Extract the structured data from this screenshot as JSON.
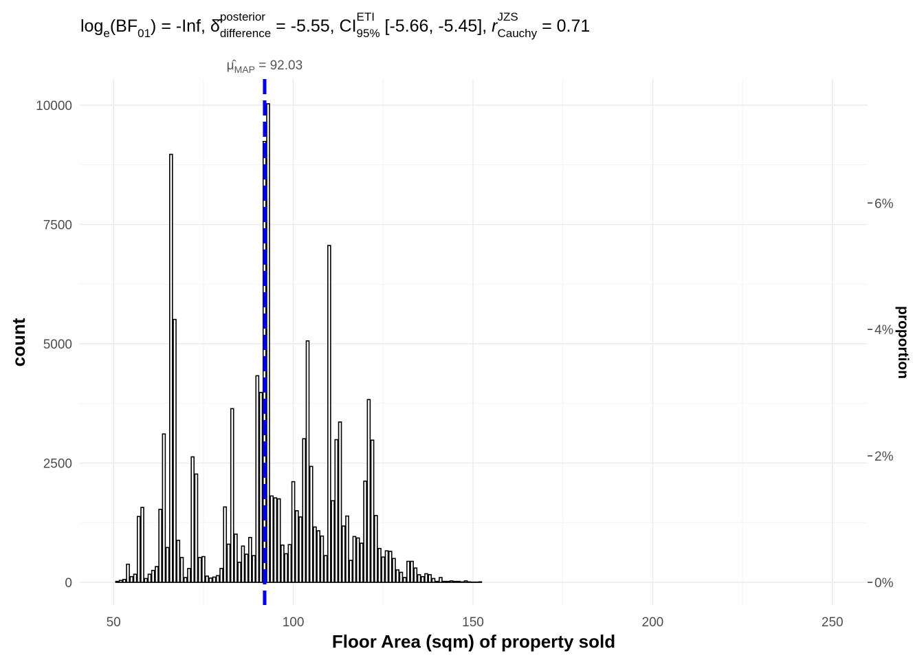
{
  "chart_data": {
    "type": "histogram",
    "title_parts": [
      "log",
      "e",
      "(BF",
      "01",
      ") = -Inf, ",
      "δ̂",
      "posterior",
      "difference",
      " = -5.55, CI",
      "ETI",
      "95%",
      " [-5.66, -5.45], ",
      "r",
      "JZS",
      "Cauchy",
      " = 0.71"
    ],
    "x_label": "Floor Area (sqm) of property sold",
    "y_label": "count",
    "y2_label": "proportion",
    "annotation": {
      "symbol": "μ̂",
      "sub": "MAP",
      "eq": " = ",
      "value": 92.03,
      "color": "#0000ff"
    },
    "bins": [
      50.5,
      51.5,
      52.5,
      53.5,
      54.5,
      55.5,
      56.5,
      57.5,
      58.5,
      59.5,
      60.5,
      61.5,
      62.5,
      63.5,
      64.5,
      65.5,
      66.5,
      67.5,
      68.5,
      69.5,
      70.5,
      71.5,
      72.5,
      73.5,
      74.5,
      75.5,
      76.5,
      77.5,
      78.5,
      79.5,
      80.5,
      81.5,
      82.5,
      83.5,
      84.5,
      85.5,
      86.5,
      87.5,
      88.5,
      89.5,
      90.5,
      91.5,
      92.5,
      93.5,
      94.5,
      95.5,
      96.5,
      97.5,
      98.5,
      99.5,
      100.5,
      101.5,
      102.5,
      103.5,
      104.5,
      105.5,
      106.5,
      107.5,
      108.5,
      109.5,
      110.5,
      111.5,
      112.5,
      113.5,
      114.5,
      115.5,
      116.5,
      117.5,
      118.5,
      119.5,
      120.5,
      121.5,
      122.5,
      123.5,
      124.5,
      125.5,
      126.5,
      127.5,
      128.5,
      129.5,
      130.5,
      131.5,
      132.5,
      133.5,
      134.5,
      135.5,
      136.5,
      137.5,
      138.5,
      139.5,
      140.5,
      141.5,
      142.5,
      143.5,
      144.5,
      145.5,
      146.5,
      147.5,
      148.5,
      149.5,
      150.5,
      151.5,
      152.5,
      153.5,
      154.5,
      155.5,
      156.5,
      157.5,
      158.5,
      159.5,
      160.5,
      161.5,
      162.5,
      163.5,
      164.5,
      165.5,
      166.5,
      167.5,
      168.5,
      169.5,
      170.5,
      171.5,
      172.5,
      173.5,
      174.5,
      175.5,
      176.5,
      177.5,
      178.5,
      179.5,
      180.5,
      181.5,
      182.5,
      183.5,
      184.5,
      185.5,
      186.5,
      187.5,
      188.5,
      189.5,
      190.5,
      191.5,
      192.5,
      193.5,
      194.5,
      195.5,
      196.5,
      197.5,
      198.5,
      199.5,
      200.5,
      201.5,
      202.5,
      203.5,
      204.5,
      205.5,
      206.5,
      207.5,
      208.5,
      209.5,
      210.5,
      211.5,
      212.5,
      213.5,
      214.5,
      215.5,
      216.5,
      217.5,
      218.5,
      219.5,
      220.5,
      221.5,
      222.5,
      223.5,
      224.5,
      225.5,
      226.5,
      227.5,
      228.5,
      229.5,
      230.5,
      231.5,
      232.5,
      233.5,
      234.5,
      235.5,
      236.5,
      237.5,
      238.5,
      239.5,
      240.5,
      241.5,
      242.5,
      243.5,
      244.5,
      245.5,
      246.5,
      247.5,
      248.5,
      249.5
    ],
    "values": [
      20,
      40,
      60,
      380,
      120,
      170,
      1380,
      1570,
      80,
      170,
      250,
      330,
      1530,
      3110,
      730,
      8970,
      5510,
      880,
      520,
      100,
      290,
      2630,
      2270,
      520,
      540,
      130,
      90,
      110,
      140,
      290,
      1580,
      800,
      3640,
      1010,
      420,
      760,
      590,
      940,
      560,
      4330,
      3980,
      9240,
      10030,
      1810,
      1770,
      1750,
      780,
      600,
      790,
      2110,
      1500,
      1370,
      3010,
      5060,
      2430,
      1160,
      1080,
      970,
      560,
      7060,
      1710,
      2990,
      3360,
      1180,
      1390,
      460,
      960,
      930,
      820,
      2120,
      3830,
      2980,
      1400,
      710,
      530,
      660,
      650,
      500,
      260,
      210,
      100,
      440,
      440,
      300,
      160,
      120,
      180,
      160,
      80,
      20,
      100,
      20,
      20,
      30,
      20,
      20,
      10,
      30,
      10,
      5,
      5,
      10,
      0,
      0,
      0,
      0,
      0,
      0,
      0,
      0,
      0,
      0,
      0,
      0,
      0,
      0,
      0,
      0,
      0,
      0,
      0,
      0,
      0,
      0,
      0,
      0,
      0,
      0,
      0,
      0,
      0,
      0,
      0,
      0,
      0,
      0,
      0,
      0,
      0,
      0,
      0,
      0,
      0,
      0,
      0,
      0,
      0,
      0,
      0,
      0,
      0,
      0,
      0,
      0,
      0,
      0,
      0,
      0,
      0,
      0,
      0,
      0,
      0,
      0,
      0,
      0,
      0,
      0,
      0,
      0,
      0,
      0,
      0,
      0,
      0,
      0,
      0,
      0,
      0,
      0,
      0,
      0,
      0,
      0,
      0,
      0,
      0,
      0,
      0,
      0,
      0,
      0,
      0,
      0,
      0,
      0,
      0,
      0,
      0
    ],
    "color": "#ffffff",
    "edge_color": "#000000",
    "xlim": [
      40.4,
      259.8
    ],
    "xticks": [
      50,
      100,
      150,
      200,
      250
    ],
    "xminor": [
      75,
      125,
      175,
      225
    ],
    "ylim": [
      -475,
      10548
    ],
    "yticks": [
      0,
      2500,
      5000,
      7500,
      10000
    ],
    "yminor": [
      1250,
      3750,
      6250,
      8750
    ],
    "y2lim": [
      -0.358,
      7.96
    ],
    "y2ticks": [
      {
        "value": 0,
        "label": "0%"
      },
      {
        "value": 2,
        "label": "2%"
      },
      {
        "value": 4,
        "label": "4%"
      },
      {
        "value": 6,
        "label": "6%"
      }
    ],
    "grid": true
  }
}
